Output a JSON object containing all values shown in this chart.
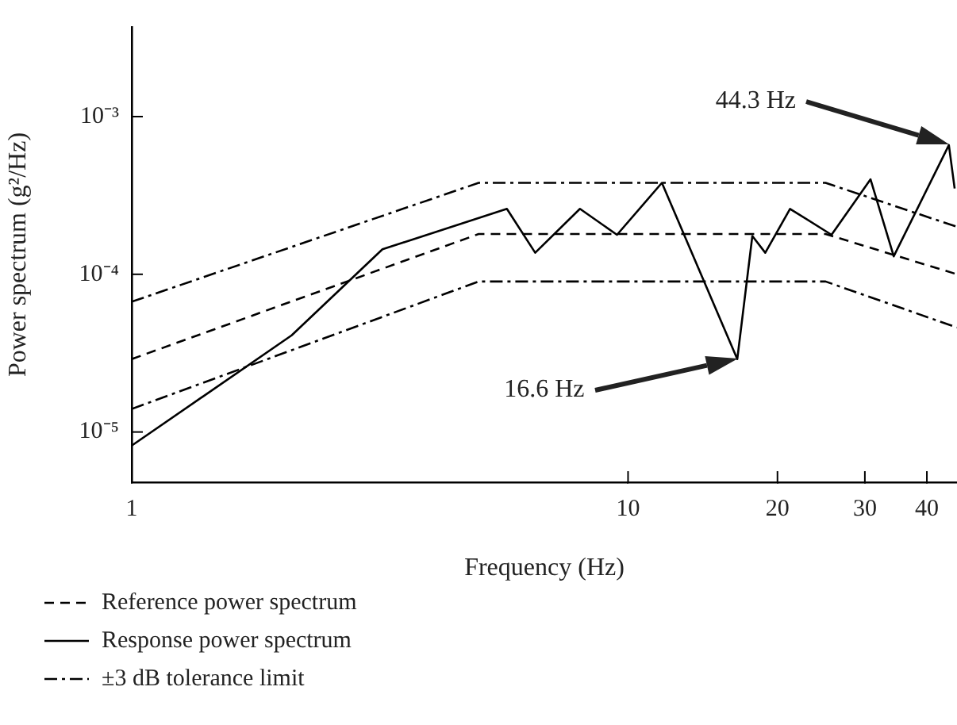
{
  "chart_data": {
    "type": "line",
    "xlabel": "Frequency (Hz)",
    "ylabel": "Power spectrum (g²/Hz)",
    "log": "xy",
    "grid": false,
    "legend": "bottom",
    "marker": "none",
    "xlim": [
      1,
      46
    ],
    "xticks": [
      1,
      10,
      20,
      30,
      40
    ],
    "ylim": [
      4.8e-06,
      0.0037
    ],
    "yticks": [
      {
        "value": 0.001,
        "label": "10⁻³"
      },
      {
        "value": 0.0001,
        "label": "10⁻⁴"
      },
      {
        "value": 1e-05,
        "label": "10⁻⁵"
      }
    ],
    "series": [
      {
        "name": "Reference power spectrum",
        "color": "#000000",
        "line_style": "dashed",
        "x": [
          1,
          5,
          25,
          46
        ],
        "values": [
          2.9e-05,
          0.00018,
          0.00018,
          0.0001
        ]
      },
      {
        "name": "Response power spectrum",
        "color": "#000000",
        "line_style": "solid",
        "x": [
          1,
          2.1,
          3.2,
          5.7,
          6.5,
          8,
          9.5,
          11.7,
          16.6,
          17.8,
          18.9,
          21.2,
          25.7,
          30.8,
          34.3,
          44.3,
          45.5
        ],
        "values": [
          8.2e-06,
          4.1e-05,
          0.000144,
          0.00026,
          0.000137,
          0.00026,
          0.000178,
          0.00038,
          2.9e-05,
          0.000175,
          0.000137,
          0.00026,
          0.000178,
          0.0004,
          0.00013,
          0.00066,
          0.00035
        ]
      },
      {
        "name": "±3 dB tolerance limit",
        "color": "#000000",
        "line_style": "dashdot",
        "x": [
          1,
          5,
          25,
          46
        ],
        "values": [
          6.7e-05,
          0.00038,
          0.00038,
          0.0002
        ]
      },
      {
        "color": "#000000",
        "line_style": "dashdot",
        "x": [
          1,
          5,
          25,
          46
        ],
        "values": [
          1.4e-05,
          9e-05,
          9e-05,
          4.6e-05
        ]
      }
    ],
    "annotations": [
      "44.3 Hz",
      "16.6 Hz"
    ]
  }
}
